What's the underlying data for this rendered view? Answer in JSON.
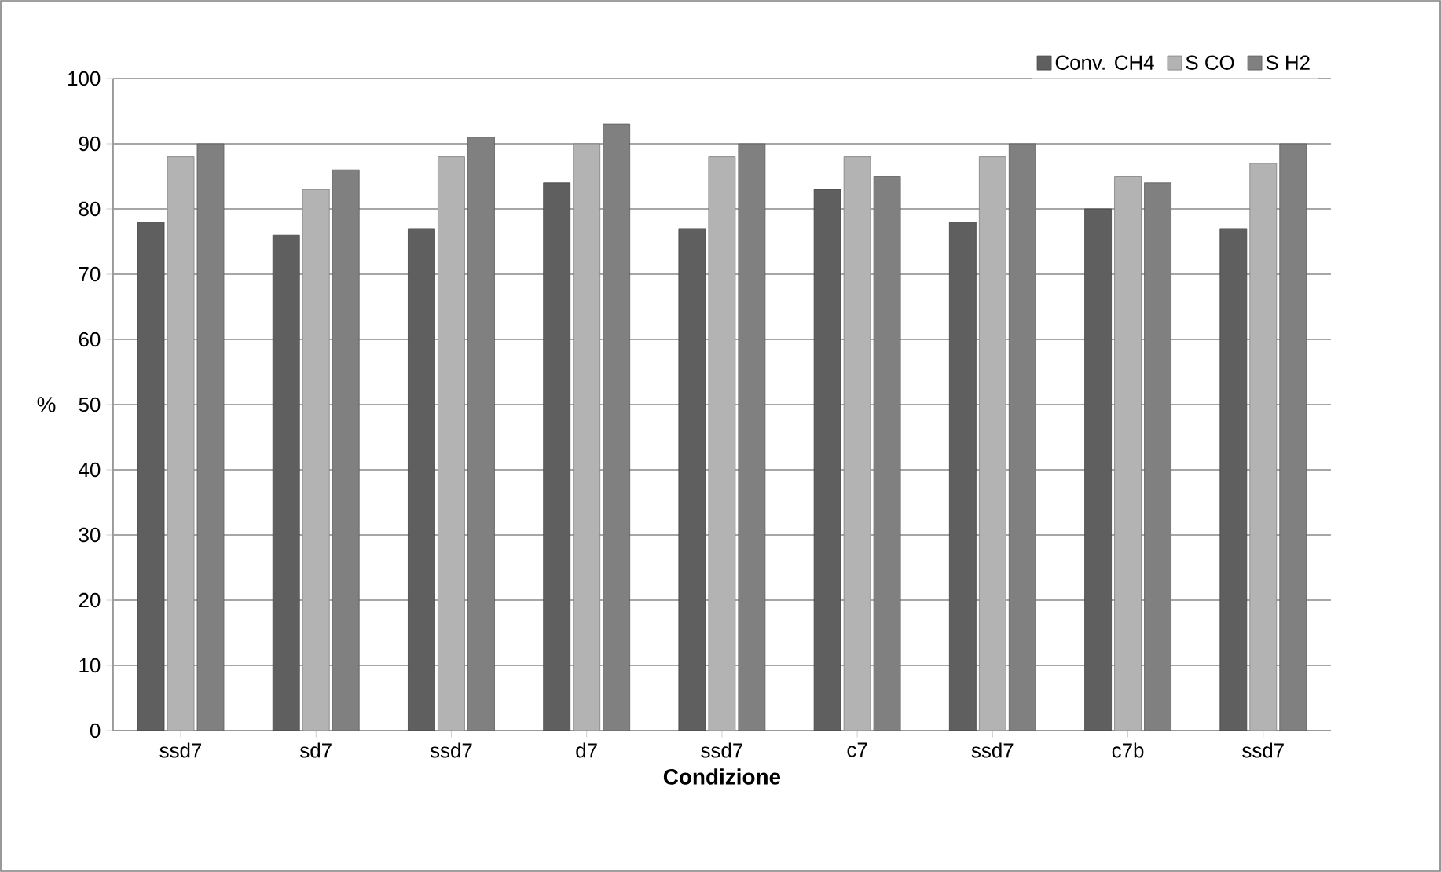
{
  "chart_data": {
    "type": "bar",
    "xlabel": "Condizione",
    "ylabel": "%",
    "categories": [
      "ssd7",
      "sd7",
      "ssd7",
      "d7",
      "ssd7",
      "c7",
      "ssd7",
      "c7b",
      "ssd7"
    ],
    "series": [
      {
        "name": "Conv. CH4",
        "color": "#5f5f5f",
        "values": [
          78,
          76,
          77,
          84,
          77,
          83,
          78,
          80,
          77
        ]
      },
      {
        "name": "S CO",
        "color": "#b3b3b3",
        "values": [
          88,
          83,
          88,
          90,
          88,
          88,
          88,
          85,
          87
        ]
      },
      {
        "name": "S H2",
        "color": "#808080",
        "values": [
          90,
          86,
          91,
          93,
          90,
          85,
          90,
          84,
          90
        ]
      }
    ],
    "ylim": [
      0,
      100
    ],
    "yticks": [
      0,
      10,
      20,
      30,
      40,
      50,
      60,
      70,
      80,
      90,
      100
    ],
    "grid": "y",
    "legend": "top right"
  }
}
